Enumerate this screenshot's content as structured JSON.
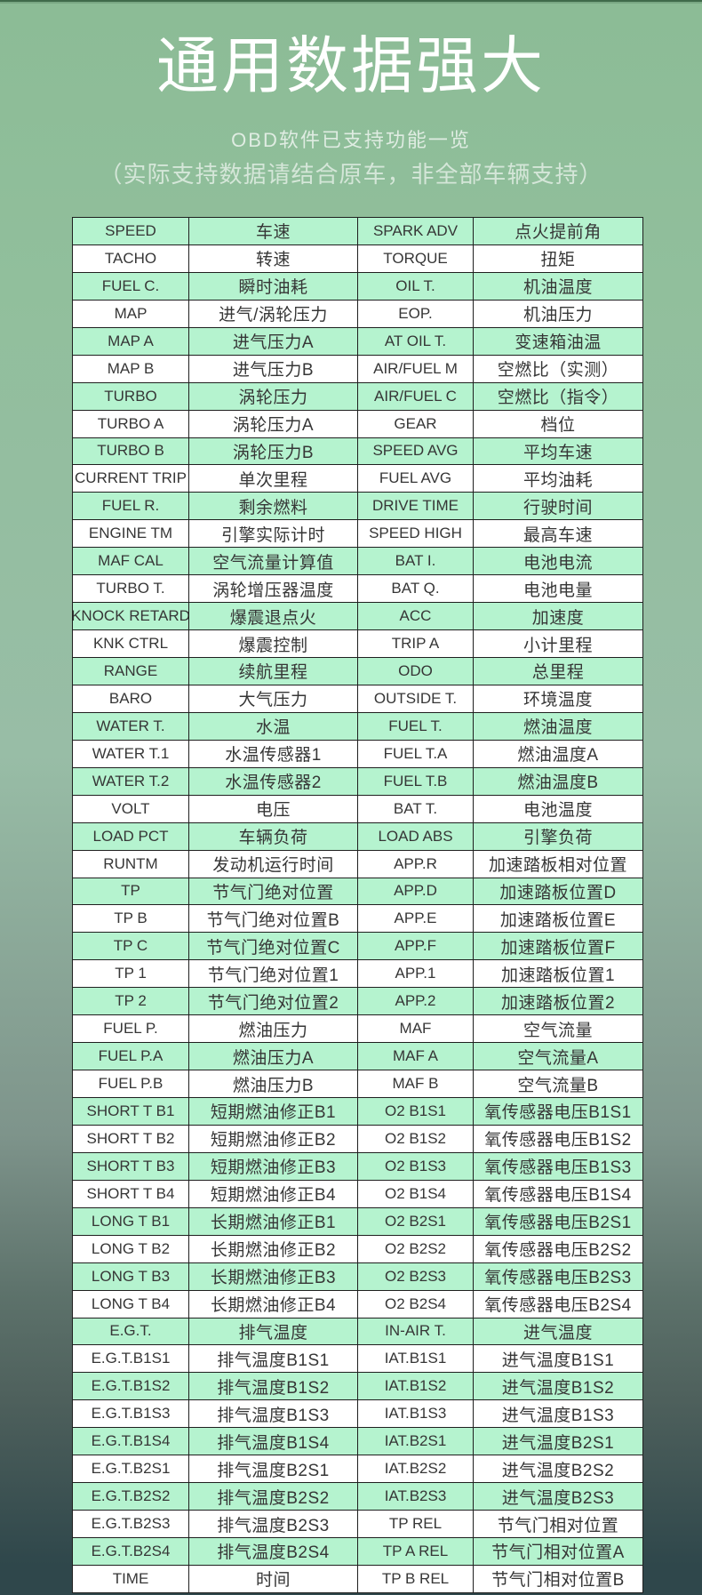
{
  "header": {
    "title": "通用数据强大",
    "subtitle1": "OBD软件已支持功能一览",
    "subtitle2": "（实际支持数据请结合原车，非全部车辆支持）"
  },
  "colors": {
    "bg_top": "#8cbc96",
    "bg_upper": "#91bf9c",
    "bg_mid": "#98bda6",
    "bg_low": "#7e948b",
    "bg_lower": "#5d726b",
    "bg_deep": "#4e605c",
    "bg_bottom": "#2f474b",
    "strip_dark": "#3f6b4a",
    "strip_light": "#79a783",
    "title_text": "#ffffff",
    "subtitle_text": "#ffffff",
    "row_green": "#b5f3cf",
    "row_white": "#ffffff",
    "border": "#1f1f1f",
    "cell_text": "#363636"
  },
  "table": {
    "column_names": [
      "pid-code-left",
      "chinese-name-left",
      "pid-code-right",
      "chinese-name-right"
    ],
    "rows": [
      [
        "SPEED",
        "车速",
        "SPARK ADV",
        "点火提前角"
      ],
      [
        "TACHO",
        "转速",
        "TORQUE",
        "扭矩"
      ],
      [
        "FUEL C.",
        "瞬时油耗",
        "OIL T.",
        "机油温度"
      ],
      [
        "MAP",
        "进气/涡轮压力",
        "EOP.",
        "机油压力"
      ],
      [
        "MAP A",
        "进气压力A",
        "AT OIL T.",
        "变速箱油温"
      ],
      [
        "MAP B",
        "进气压力B",
        "AIR/FUEL M",
        "空燃比（实测）"
      ],
      [
        "TURBO",
        "涡轮压力",
        "AIR/FUEL C",
        "空燃比（指令）"
      ],
      [
        "TURBO A",
        "涡轮压力A",
        "GEAR",
        "档位"
      ],
      [
        "TURBO B",
        "涡轮压力B",
        "SPEED AVG",
        "平均车速"
      ],
      [
        "CURRENT TRIP",
        "单次里程",
        "FUEL AVG",
        "平均油耗"
      ],
      [
        "FUEL R.",
        "剩余燃料",
        "DRIVE TIME",
        "行驶时间"
      ],
      [
        "ENGINE TM",
        "引擎实际计时",
        "SPEED HIGH",
        "最高车速"
      ],
      [
        "MAF CAL",
        "空气流量计算值",
        "BAT I.",
        "电池电流"
      ],
      [
        "TURBO T.",
        "涡轮增压器温度",
        "BAT Q.",
        "电池电量"
      ],
      [
        "KNOCK RETARD",
        "爆震退点火",
        "ACC",
        "加速度"
      ],
      [
        "KNK CTRL",
        "爆震控制",
        "TRIP A",
        "小计里程"
      ],
      [
        "RANGE",
        "续航里程",
        "ODO",
        "总里程"
      ],
      [
        "BARO",
        "大气压力",
        "OUTSIDE T.",
        "环境温度"
      ],
      [
        "WATER T.",
        "水温",
        "FUEL T.",
        "燃油温度"
      ],
      [
        "WATER T.1",
        "水温传感器1",
        "FUEL T.A",
        "燃油温度A"
      ],
      [
        "WATER T.2",
        "水温传感器2",
        "FUEL T.B",
        "燃油温度B"
      ],
      [
        "VOLT",
        "电压",
        "BAT T.",
        "电池温度"
      ],
      [
        "LOAD PCT",
        "车辆负荷",
        "LOAD ABS",
        "引擎负荷"
      ],
      [
        "RUNTM",
        "发动机运行时间",
        "APP.R",
        "加速踏板相对位置"
      ],
      [
        "TP",
        "节气门绝对位置",
        "APP.D",
        "加速踏板位置D"
      ],
      [
        "TP B",
        "节气门绝对位置B",
        "APP.E",
        "加速踏板位置E"
      ],
      [
        "TP C",
        "节气门绝对位置C",
        "APP.F",
        "加速踏板位置F"
      ],
      [
        "TP 1",
        "节气门绝对位置1",
        "APP.1",
        "加速踏板位置1"
      ],
      [
        "TP 2",
        "节气门绝对位置2",
        "APP.2",
        "加速踏板位置2"
      ],
      [
        "FUEL P.",
        "燃油压力",
        "MAF",
        "空气流量"
      ],
      [
        "FUEL P.A",
        "燃油压力A",
        "MAF A",
        "空气流量A"
      ],
      [
        "FUEL P.B",
        "燃油压力B",
        "MAF B",
        "空气流量B"
      ],
      [
        "SHORT T B1",
        "短期燃油修正B1",
        "O2 B1S1",
        "氧传感器电压B1S1"
      ],
      [
        "SHORT T B2",
        "短期燃油修正B2",
        "O2 B1S2",
        "氧传感器电压B1S2"
      ],
      [
        "SHORT T B3",
        "短期燃油修正B3",
        "O2 B1S3",
        "氧传感器电压B1S3"
      ],
      [
        "SHORT T B4",
        "短期燃油修正B4",
        "O2 B1S4",
        "氧传感器电压B1S4"
      ],
      [
        "LONG T B1",
        "长期燃油修正B1",
        "O2 B2S1",
        "氧传感器电压B2S1"
      ],
      [
        "LONG T B2",
        "长期燃油修正B2",
        "O2 B2S2",
        "氧传感器电压B2S2"
      ],
      [
        "LONG T B3",
        "长期燃油修正B3",
        "O2 B2S3",
        "氧传感器电压B2S3"
      ],
      [
        "LONG T B4",
        "长期燃油修正B4",
        "O2 B2S4",
        "氧传感器电压B2S4"
      ],
      [
        "E.G.T.",
        "排气温度",
        "IN-AIR T.",
        "进气温度"
      ],
      [
        "E.G.T.B1S1",
        "排气温度B1S1",
        "IAT.B1S1",
        "进气温度B1S1"
      ],
      [
        "E.G.T.B1S2",
        "排气温度B1S2",
        "IAT.B1S2",
        "进气温度B1S2"
      ],
      [
        "E.G.T.B1S3",
        "排气温度B1S3",
        "IAT.B1S3",
        "进气温度B1S3"
      ],
      [
        "E.G.T.B1S4",
        "排气温度B1S4",
        "IAT.B2S1",
        "进气温度B2S1"
      ],
      [
        "E.G.T.B2S1",
        "排气温度B2S1",
        "IAT.B2S2",
        "进气温度B2S2"
      ],
      [
        "E.G.T.B2S2",
        "排气温度B2S2",
        "IAT.B2S3",
        "进气温度B2S3"
      ],
      [
        "E.G.T.B2S3",
        "排气温度B2S3",
        "TP REL",
        "节气门相对位置"
      ],
      [
        "E.G.T.B2S4",
        "排气温度B2S4",
        "TP A REL",
        "节气门相对位置A"
      ],
      [
        "TIME",
        "时间",
        "TP B REL",
        "节气门相对位置B"
      ]
    ]
  }
}
